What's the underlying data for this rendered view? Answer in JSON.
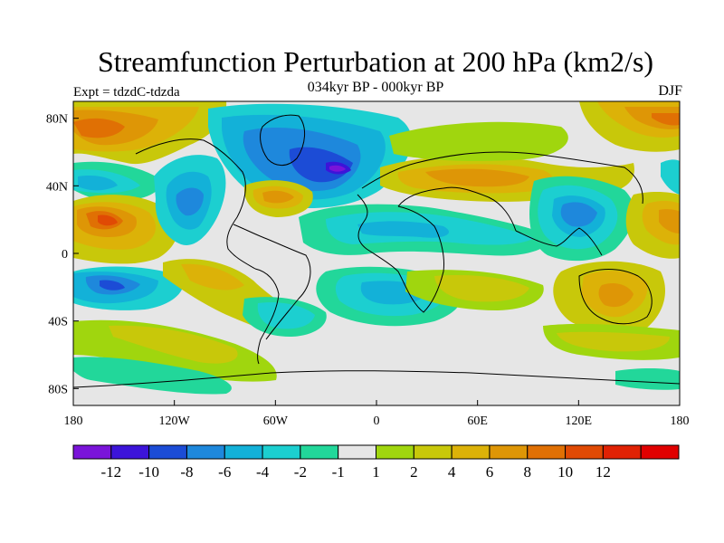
{
  "title": "Streamfunction Perturbation at 200 hPa (km2/s)",
  "subtitle": "034kyr BP - 000kyr BP",
  "left_label": "Expt = tdzdC-tdzda",
  "right_label": "DJF",
  "map": {
    "lat_ticks": [
      {
        "value": 80,
        "label": "80N"
      },
      {
        "value": 40,
        "label": "40N"
      },
      {
        "value": 0,
        "label": "0"
      },
      {
        "value": -40,
        "label": "40S"
      },
      {
        "value": -80,
        "label": "80S"
      }
    ],
    "lon_ticks": [
      {
        "value": -180,
        "label": "180"
      },
      {
        "value": -120,
        "label": "120W"
      },
      {
        "value": -60,
        "label": "60W"
      },
      {
        "value": 0,
        "label": "0"
      },
      {
        "value": 60,
        "label": "60E"
      },
      {
        "value": 120,
        "label": "120E"
      },
      {
        "value": 180,
        "label": "180"
      }
    ],
    "land_color": "#111111"
  },
  "colorbar": {
    "colors": [
      "#7a14d9",
      "#3c14d9",
      "#1c4cd6",
      "#1e88dc",
      "#13b1d8",
      "#1ccfd0",
      "#22d79a",
      "#e6e6e6",
      "#a0d60e",
      "#c8c80a",
      "#dcb208",
      "#de9606",
      "#e07004",
      "#e04a04",
      "#e02204",
      "#e00000"
    ],
    "labels": [
      "-12",
      "-10",
      "-8",
      "-6",
      "-4",
      "-2",
      "-1",
      "1",
      "2",
      "4",
      "6",
      "8",
      "10",
      "12"
    ]
  }
}
